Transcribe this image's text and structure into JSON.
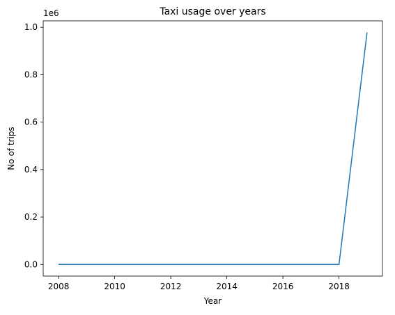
{
  "chart_data": {
    "type": "line",
    "title": "Taxi usage over years",
    "xlabel": "Year",
    "ylabel": "No of trips",
    "y_offset_label": "1e6",
    "x_ticks": [
      "2008",
      "2010",
      "2012",
      "2014",
      "2016",
      "2018"
    ],
    "y_ticks": [
      "0.0",
      "0.2",
      "0.4",
      "0.6",
      "0.8",
      "1.0"
    ],
    "xlim": [
      2007.45,
      2019.55
    ],
    "ylim": [
      -0.049,
      1.027
    ],
    "y_scale": 1000000,
    "grid": false,
    "line_color": "#1f77b4",
    "series": [
      {
        "x": [
          2008,
          2009,
          2010,
          2011,
          2012,
          2013,
          2014,
          2015,
          2016,
          2017,
          2018,
          2019
        ],
        "values": [
          0.0,
          0.0,
          0.0,
          0.0,
          0.0,
          0.0,
          0.0,
          0.0,
          0.0,
          0.0,
          0.0,
          0.978
        ]
      }
    ]
  }
}
